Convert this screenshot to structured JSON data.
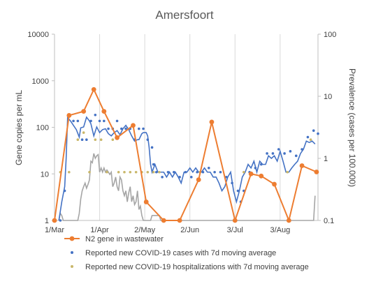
{
  "chart_data": {
    "type": "line",
    "title": "Amersfoort",
    "ylabel_left": "Gene copies per mL",
    "ylabel_right": "Prevalence (cases per 100.000)",
    "y_left_scale": "log",
    "y_left_lim": [
      1,
      10000
    ],
    "y_left_ticks": [
      "1",
      "10",
      "100",
      "1000",
      "10000"
    ],
    "y_right_scale": "log",
    "y_right_lim": [
      0.1,
      100
    ],
    "y_right_ticks": [
      "0.1",
      "1",
      "10",
      "100"
    ],
    "x_tick_labels": [
      "1/Mar",
      "1/Apr",
      "2/May",
      "2/Jun",
      "3/Jul",
      "3/Aug"
    ],
    "x_tick_days": [
      0,
      31,
      62,
      93,
      124,
      155
    ],
    "x_lim_days": [
      0,
      181
    ],
    "grid": "vertical",
    "legend_position": "bottom",
    "colors": {
      "wastewater": "#ED7D31",
      "cases": "#4472C4",
      "hospitalizations": "#A5A5A5",
      "hospital_dots": "#C9B76A"
    },
    "series": [
      {
        "name": "N2 gene in wastewater",
        "axis": "left",
        "marker": "circle",
        "days": [
          0,
          10,
          20,
          27,
          34,
          43,
          54,
          63,
          75,
          86,
          99,
          108,
          124,
          135,
          142,
          151,
          161,
          170,
          180
        ],
        "values": [
          1,
          180,
          220,
          650,
          220,
          60,
          110,
          2.5,
          1,
          1,
          7.5,
          130,
          1,
          10,
          9,
          6,
          1,
          15,
          11
        ]
      },
      {
        "name": "Reported new COVID-19 cases with 7d moving average",
        "axis": "right",
        "marker": "dot",
        "days": [
          0,
          4,
          7,
          10,
          13,
          16,
          19,
          22,
          25,
          28,
          31,
          34,
          37,
          40,
          43,
          46,
          49,
          52,
          55,
          58,
          61,
          64,
          67,
          68,
          70,
          74,
          78,
          82,
          86,
          90,
          94,
          98,
          102,
          106,
          110,
          114,
          118,
          122,
          126,
          128,
          130,
          134,
          138,
          142,
          146,
          150,
          154,
          158,
          162,
          166,
          170,
          174,
          178,
          181
        ],
        "values": [
          0.1,
          0.1,
          0.3,
          5,
          4,
          4,
          2,
          2,
          4,
          5,
          4,
          4,
          3,
          3,
          4,
          3,
          3,
          3,
          2,
          3,
          3,
          2,
          1.5,
          0.8,
          0.6,
          0.5,
          0.6,
          0.6,
          0.5,
          0.6,
          0.5,
          0.6,
          0.6,
          0.7,
          0.6,
          0.6,
          0.5,
          0.4,
          0.3,
          0.2,
          0.3,
          0.6,
          0.7,
          0.8,
          1.2,
          1.2,
          1.4,
          1.2,
          1.3,
          1.1,
          1.4,
          2.2,
          2.8,
          2.5
        ],
        "moving_average_days": [
          3,
          5,
          7,
          8,
          9,
          11,
          13,
          15,
          17,
          18,
          20,
          22,
          24,
          25,
          27,
          29,
          31,
          33,
          35,
          37,
          39,
          41,
          43,
          45,
          47,
          49,
          51,
          53,
          55,
          57,
          58,
          60,
          61,
          62,
          63,
          64,
          65,
          66,
          67,
          69,
          71,
          73,
          75,
          77,
          79,
          81,
          83,
          85,
          87,
          89,
          91,
          93,
          95,
          97,
          99,
          101,
          103,
          105,
          107,
          109,
          111,
          113,
          115,
          117,
          119,
          121,
          123,
          125,
          127,
          129,
          131,
          133,
          135,
          137,
          139,
          141,
          143,
          145,
          147,
          149,
          151,
          153,
          155,
          157,
          159,
          161,
          163,
          165,
          167,
          169,
          171,
          173,
          175,
          177,
          179
        ],
        "moving_average_values": [
          0.1,
          0.2,
          0.35,
          1,
          4.5,
          4,
          3.4,
          2.9,
          2.2,
          3.1,
          3.2,
          4.6,
          4,
          3.6,
          2.3,
          3.2,
          2.6,
          2.9,
          3,
          2.5,
          2.3,
          2.6,
          2.8,
          2.4,
          3,
          3.4,
          2.9,
          2.3,
          1.9,
          2,
          2,
          2.5,
          2.6,
          2.6,
          2.6,
          2.3,
          1.5,
          0.8,
          0.6,
          0.8,
          0.6,
          0.6,
          0.6,
          0.5,
          0.6,
          0.5,
          0.6,
          0.5,
          0.4,
          0.6,
          0.6,
          0.7,
          0.6,
          0.7,
          0.6,
          0.6,
          0.7,
          0.6,
          0.6,
          0.5,
          0.5,
          0.4,
          0.3,
          0.35,
          0.5,
          0.6,
          0.3,
          0.2,
          0.3,
          0.5,
          0.6,
          0.8,
          0.7,
          0.9,
          0.6,
          0.9,
          0.8,
          0.8,
          1.1,
          1,
          1.1,
          0.9,
          1.3,
          0.9,
          0.6,
          0.6,
          0.7,
          0.8,
          0.9,
          1.2,
          1.4,
          1.9,
          1.8,
          1.9,
          1.7
        ]
      },
      {
        "name": "Reported new COVID-19 hospitalizations with 7d moving average",
        "axis": "right",
        "marker": "dot",
        "days": [
          4,
          10,
          16,
          20,
          24,
          28,
          32,
          36,
          40,
          44,
          48,
          52,
          56,
          60,
          64,
          68,
          72,
          100,
          130,
          160,
          176
        ],
        "values": [
          0.6,
          0.6,
          2,
          2.6,
          0.6,
          2,
          2,
          0.6,
          2,
          0.6,
          0.6,
          0.6,
          0.6,
          0.6,
          0.6,
          0.6,
          0.6,
          0.6,
          0.6,
          0.6,
          2
        ],
        "moving_average_days": [
          3,
          4,
          5,
          6,
          16,
          17,
          18,
          19,
          20,
          21,
          22,
          23,
          24,
          25,
          26,
          27,
          28,
          29,
          30,
          31,
          32,
          33,
          34,
          35,
          36,
          37,
          38,
          39,
          40,
          41,
          42,
          43,
          44,
          45,
          46,
          47,
          48,
          49,
          50,
          51,
          52,
          53,
          54,
          55,
          56,
          57,
          58,
          59,
          60,
          61,
          66,
          67,
          72,
          73,
          178,
          179
        ],
        "moving_average_values": [
          0.1,
          0.13,
          0.12,
          0.1,
          0.1,
          0.13,
          0.22,
          0.3,
          0.35,
          0.4,
          0.33,
          0.38,
          0.45,
          0.9,
          0.85,
          1.2,
          1.0,
          1.1,
          1.15,
          0.6,
          0.7,
          0.6,
          0.7,
          0.6,
          0.65,
          0.6,
          0.55,
          0.6,
          0.35,
          0.4,
          0.5,
          0.35,
          0.3,
          0.5,
          0.45,
          0.3,
          0.25,
          0.3,
          0.2,
          0.28,
          0.35,
          0.2,
          0.25,
          0.18,
          0.2,
          0.3,
          0.15,
          0.17,
          0.12,
          0.1,
          0.1,
          0.12,
          0.12,
          0.1,
          0.1,
          0.25
        ]
      }
    ]
  }
}
